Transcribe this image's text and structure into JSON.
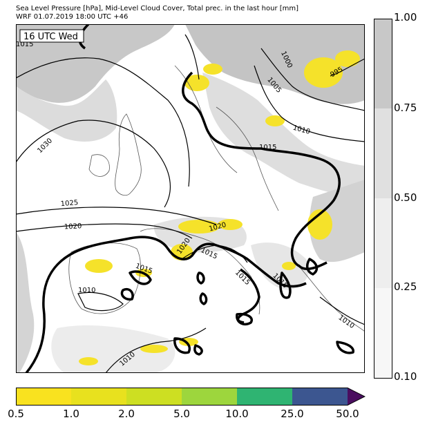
{
  "title": {
    "line1": "Sea Level Pressure [hPa], Mid-Level Cloud Cover, Total prec. in the last hour [mm]",
    "line2": "WRF 01.07.2019 18:00 UTC +46"
  },
  "map": {
    "time_label": "16 UTC Wed",
    "isobar_labels": [
      "1015",
      "1030",
      "1000",
      "995",
      "1005",
      "1010",
      "1015",
      "1025",
      "1020",
      "1020",
      "1020",
      "1015",
      "1015",
      "1015",
      "1010",
      "1015",
      "1010",
      "1010"
    ],
    "colors": {
      "cloud_high": "#c4c4c4",
      "cloud_mid": "#d8d8d8",
      "cloud_low": "#ebebeb",
      "precip": "#f5e22a",
      "land_background": "#ffffff"
    }
  },
  "cloud_colorbar": {
    "ticks": [
      "1.00",
      "0.75",
      "0.50",
      "0.25",
      "0.10"
    ],
    "colors": [
      "#c8c8c8",
      "#e0e0e0",
      "#eeeeee",
      "#f7f7f7"
    ]
  },
  "precip_colorbar": {
    "ticks": [
      "0.5",
      "1.0",
      "2.0",
      "5.0",
      "10.0",
      "25.0",
      "50.0"
    ],
    "colors": [
      "#f9e21f",
      "#e8e11e",
      "#cddf22",
      "#9dd63d",
      "#2fb472",
      "#3c5690",
      "#4a0e5f"
    ]
  }
}
